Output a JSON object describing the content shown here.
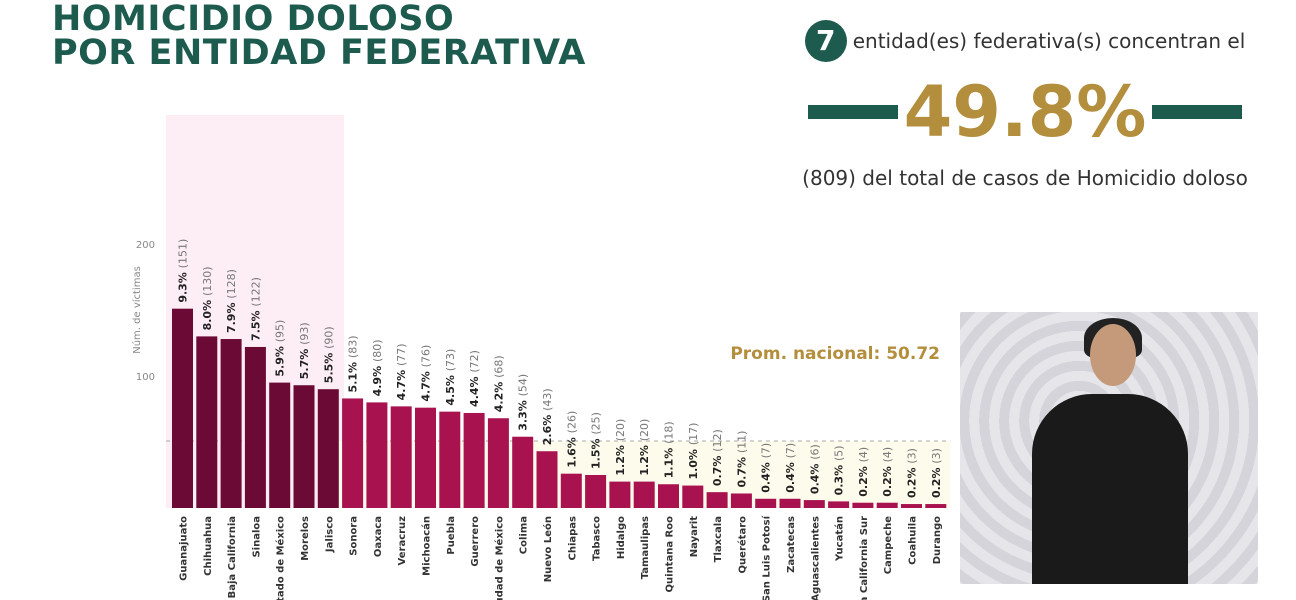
{
  "title_lines": [
    "HOMICIDIO DOLOSO",
    "POR ENTIDAD FEDERATIVA"
  ],
  "summary": {
    "count": "7",
    "line1": "entidad(es) federativa(s) concentran el",
    "percent": "49.8%",
    "line3": "(809) del total de casos de Homicidio doloso"
  },
  "colors": {
    "title": "#1e5b4f",
    "accent": "#b38e3d",
    "top_bar": "#6b0a35",
    "bar": "#a8134f",
    "highlight": "#fdeef5",
    "below_avg": "#fdfbeb"
  },
  "chart_data": {
    "type": "bar",
    "ylabel": "Núm. de víctimas",
    "yticks": [
      100,
      200
    ],
    "ylim": [
      0,
      200
    ],
    "average_label": "Prom. nacional: 50.72",
    "average": 50.72,
    "highlight_count": 7,
    "categories": [
      "Guanajuato",
      "Chihuahua",
      "Baja California",
      "Sinaloa",
      "Estado de México",
      "Morelos",
      "Jalisco",
      "Sonora",
      "Oaxaca",
      "Veracruz",
      "Michoacán",
      "Puebla",
      "Guerrero",
      "Ciudad de México",
      "Colima",
      "Nuevo León",
      "Chiapas",
      "Tabasco",
      "Hidalgo",
      "Tamaulipas",
      "Quintana Roo",
      "Nayarit",
      "Tlaxcala",
      "Querétaro",
      "San Luis Potosí",
      "Zacatecas",
      "Aguascalientes",
      "Yucatán",
      "Baja California Sur",
      "Campeche",
      "Coahuila",
      "Durango"
    ],
    "values": [
      151,
      130,
      128,
      122,
      95,
      93,
      90,
      83,
      80,
      77,
      76,
      73,
      72,
      68,
      54,
      43,
      26,
      25,
      20,
      20,
      18,
      17,
      12,
      11,
      7,
      7,
      6,
      5,
      4,
      4,
      3,
      3
    ],
    "percents": [
      "9.3%",
      "8.0%",
      "7.9%",
      "7.5%",
      "5.9%",
      "5.7%",
      "5.5%",
      "5.1%",
      "4.9%",
      "4.7%",
      "4.7%",
      "4.5%",
      "4.4%",
      "4.2%",
      "3.3%",
      "2.6%",
      "1.6%",
      "1.5%",
      "1.2%",
      "1.2%",
      "1.1%",
      "1.0%",
      "0.7%",
      "0.7%",
      "0.4%",
      "0.4%",
      "0.4%",
      "0.3%",
      "0.2%",
      "0.2%",
      "0.2%",
      "0.2%"
    ]
  }
}
